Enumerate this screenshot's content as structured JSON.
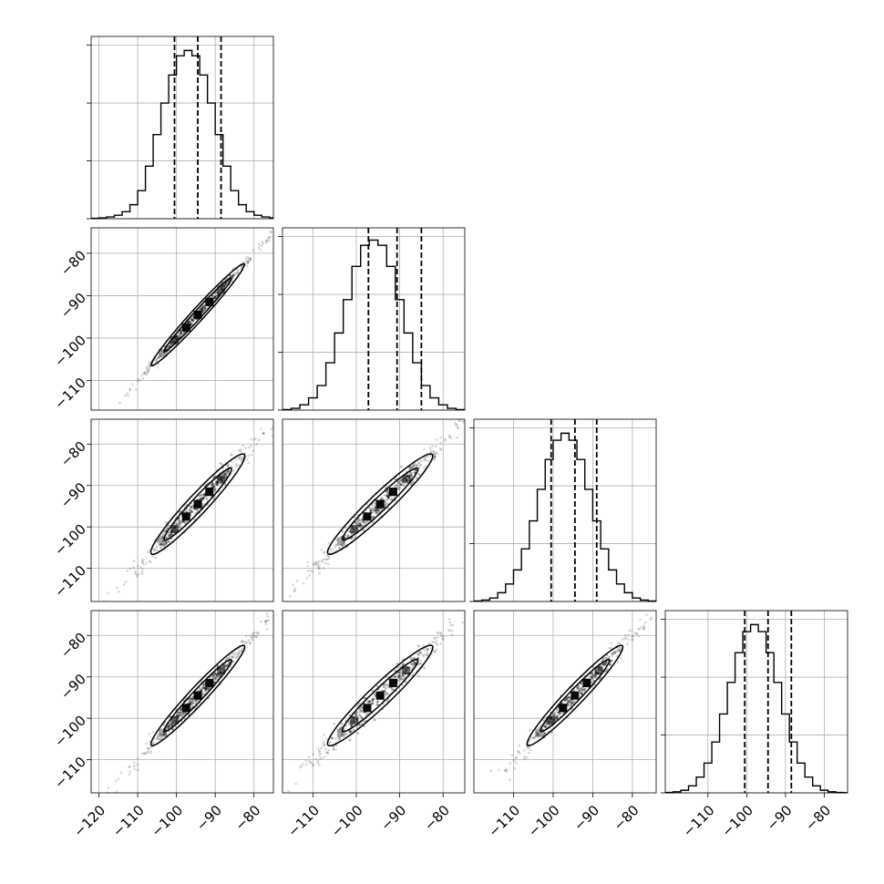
{
  "chart_data": {
    "type": "corner",
    "variables": 4,
    "x_range": [
      -122,
      -75
    ],
    "y_range": [
      -118,
      -74
    ],
    "x_ticks": {
      "col0": [
        -120,
        -110,
        -100,
        -90,
        -80
      ],
      "col1": [
        -110,
        -100,
        -90,
        -80
      ],
      "col2": [
        -110,
        -100,
        -90,
        -80
      ],
      "col3": [
        -110,
        -100,
        -90,
        -80
      ]
    },
    "x_tick_labels": {
      "col0": [
        "−120",
        "−110",
        "−100",
        "−90",
        "−80"
      ],
      "col1": [
        "−110",
        "−100",
        "−90",
        "−80"
      ],
      "col2": [
        "−110",
        "−100",
        "−90",
        "−80"
      ],
      "col3": [
        "−110",
        "−100",
        "−90",
        "−80"
      ]
    },
    "y_ticks": [
      -80,
      -90,
      -100,
      -110
    ],
    "y_tick_labels": [
      "−80",
      "−90",
      "−100",
      "−110"
    ],
    "grid": true,
    "histograms": [
      {
        "variable": 0,
        "x_range": [
          -122,
          -75
        ],
        "bin_edges": [
          -122,
          -120,
          -118,
          -116,
          -114,
          -112,
          -110,
          -108,
          -106,
          -104,
          -102,
          -100,
          -98,
          -96,
          -94,
          -92,
          -90,
          -88,
          -86,
          -84,
          -82,
          -80,
          -78,
          -76,
          -75
        ],
        "counts": [
          0.2,
          0.5,
          1,
          2,
          4,
          8,
          16,
          30,
          48,
          66,
          82,
          93,
          96,
          93,
          82,
          66,
          48,
          30,
          16,
          8,
          4,
          2,
          1,
          0.5
        ],
        "quantiles": [
          -100.5,
          -94.5,
          -88.5
        ],
        "ymax": 100
      },
      {
        "variable": 1,
        "x_range": [
          -117,
          -75
        ],
        "bin_edges": [
          -117,
          -115,
          -113,
          -111,
          -109,
          -107,
          -105,
          -103,
          -101,
          -99,
          -97,
          -95,
          -93,
          -91,
          -89,
          -87,
          -85,
          -83,
          -81,
          -79,
          -77,
          -75
        ],
        "counts": [
          0.3,
          1,
          3,
          7,
          14,
          27,
          44,
          63,
          82,
          94,
          97,
          94,
          82,
          63,
          44,
          27,
          14,
          7,
          3,
          1,
          0.3
        ],
        "quantiles": [
          -97.2,
          -90.6,
          -85.0
        ],
        "ymax": 100
      },
      {
        "variable": 2,
        "x_range": [
          -120,
          -74
        ],
        "bin_edges": [
          -120,
          -118,
          -116,
          -114,
          -112,
          -110,
          -108,
          -106,
          -104,
          -102,
          -100,
          -98,
          -96,
          -94,
          -92,
          -90,
          -88,
          -86,
          -84,
          -82,
          -80,
          -78,
          -76,
          -74
        ],
        "counts": [
          0.3,
          0.8,
          2,
          5,
          10,
          18,
          30,
          46,
          64,
          81,
          92,
          96,
          92,
          81,
          64,
          46,
          30,
          18,
          10,
          5,
          2,
          0.8,
          0.3
        ],
        "quantiles": [
          -100.5,
          -94.5,
          -89.0
        ],
        "ymax": 100
      },
      {
        "variable": 3,
        "x_range": [
          -121,
          -74
        ],
        "bin_edges": [
          -121,
          -119,
          -117,
          -115,
          -113,
          -111,
          -109,
          -107,
          -105,
          -103,
          -101,
          -99,
          -97,
          -95,
          -93,
          -91,
          -89,
          -87,
          -85,
          -83,
          -81,
          -79,
          -77,
          -75,
          -74
        ],
        "counts": [
          0.2,
          0.6,
          1.5,
          4,
          9,
          17,
          29,
          45,
          63,
          80,
          92,
          96,
          92,
          80,
          63,
          45,
          29,
          17,
          9,
          4,
          1.5,
          0.6,
          0.2,
          0.1
        ],
        "quantiles": [
          -100.5,
          -94.5,
          -88.5
        ],
        "ymax": 100
      }
    ],
    "scatter_panels": [
      {
        "row": 1,
        "col": 0,
        "x_range": [
          -122,
          -75
        ],
        "y_range": [
          -117,
          -74
        ],
        "slope": 1.0,
        "intercept": 0,
        "spread": 0.6,
        "contour_half_width": 2.2
      },
      {
        "row": 2,
        "col": 0,
        "x_range": [
          -122,
          -75
        ],
        "y_range": [
          -118,
          -74
        ],
        "slope": 1.0,
        "intercept": 0,
        "spread": 1.2,
        "contour_half_width": 3.5
      },
      {
        "row": 2,
        "col": 1,
        "x_range": [
          -117,
          -75
        ],
        "y_range": [
          -118,
          -74
        ],
        "slope": 1.0,
        "intercept": 0,
        "spread": 1.2,
        "contour_half_width": 3.5
      },
      {
        "row": 3,
        "col": 0,
        "x_range": [
          -122,
          -75
        ],
        "y_range": [
          -118,
          -74
        ],
        "slope": 1.0,
        "intercept": 0,
        "spread": 1.0,
        "contour_half_width": 3.0
      },
      {
        "row": 3,
        "col": 1,
        "x_range": [
          -117,
          -75
        ],
        "y_range": [
          -118,
          -74
        ],
        "slope": 1.0,
        "intercept": 0,
        "spread": 1.3,
        "contour_half_width": 3.6
      },
      {
        "row": 3,
        "col": 2,
        "x_range": [
          -120,
          -74
        ],
        "y_range": [
          -118,
          -74
        ],
        "slope": 1.0,
        "intercept": 0,
        "spread": 1.1,
        "contour_half_width": 3.2
      }
    ],
    "center": -94.5,
    "colors": {
      "line": "#000000",
      "grid": "#b0b0b0"
    }
  }
}
